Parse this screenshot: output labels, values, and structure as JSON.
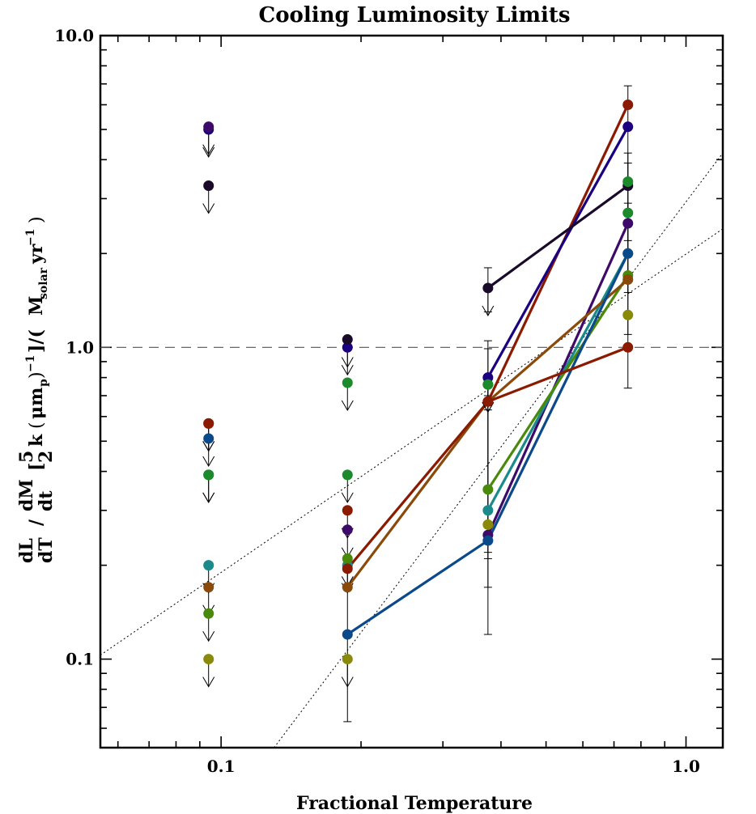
{
  "chart_data": {
    "type": "scatter",
    "title": "Cooling Luminosity Limits",
    "xlabel": "Fractional Temperature",
    "ylabel_parts": {
      "frac1_num": "dL",
      "frac1_den": "dT",
      "frac2_num": "dM",
      "frac2_den": "dt",
      "frac3_num": "5",
      "frac3_den": "2",
      "k": "k",
      "mu": "μm",
      "p": "p",
      "inv": "−1",
      "close": "]/(",
      "msolar": "M",
      "solar": "solar",
      "yr": "yr",
      "yrinv": "−1",
      "end": ")"
    },
    "x_scale": "log",
    "y_scale": "log",
    "xlim": [
      0.055,
      1.2
    ],
    "ylim": [
      0.052,
      10.0
    ],
    "x_ticks": [
      {
        "value": 0.1,
        "label": "0.1"
      },
      {
        "value": 1.0,
        "label": "1.0"
      }
    ],
    "y_ticks": [
      {
        "value": 0.1,
        "label": "0.1"
      },
      {
        "value": 1.0,
        "label": "1.0"
      },
      {
        "value": 10.0,
        "label": "10.0"
      }
    ],
    "reference_line_y": 1.0,
    "dotted_lines": [
      {
        "x": [
          0.055,
          1.2
        ],
        "y": [
          0.103,
          2.4
        ]
      },
      {
        "x": [
          0.13,
          1.2
        ],
        "y": [
          0.052,
          4.2
        ]
      }
    ],
    "x_groups": [
      0.094,
      0.187,
      0.375,
      0.75
    ],
    "series": [
      {
        "color": "#8b1a00",
        "y": [
          0.57,
          0.3,
          0.67,
          6.0
        ],
        "upper_limit": [
          true,
          true,
          false,
          false
        ],
        "connected": [
          false,
          false,
          true,
          true
        ]
      },
      {
        "color": "#1a0080",
        "y": [
          5.0,
          1.0,
          0.8,
          5.1
        ],
        "upper_limit": [
          true,
          true,
          false,
          false
        ],
        "connected": [
          false,
          false,
          true,
          true
        ]
      },
      {
        "color": "#1a0a2a",
        "y": [
          3.3,
          1.06,
          1.55,
          3.3
        ],
        "upper_limit": [
          true,
          true,
          true,
          false
        ],
        "connected": [
          false,
          false,
          true,
          true
        ]
      },
      {
        "color": "#3d0a6a",
        "y": [
          5.1,
          0.26,
          0.25,
          2.5
        ],
        "upper_limit": [
          true,
          true,
          false,
          false
        ],
        "connected": [
          false,
          false,
          true,
          true
        ]
      },
      {
        "color": "#1a8a2a",
        "y": [
          0.39,
          0.39,
          0.76,
          3.4
        ],
        "upper_limit": [
          true,
          true,
          true,
          false
        ],
        "connected": [
          false,
          false,
          false,
          false
        ]
      },
      {
        "color": "#1a8a8a",
        "y": [
          0.2,
          0.2,
          0.3,
          2.0
        ],
        "upper_limit": [
          true,
          true,
          false,
          false
        ],
        "connected": [
          false,
          false,
          true,
          true
        ]
      },
      {
        "color": "#4a8a0a",
        "y": [
          0.14,
          0.21,
          0.35,
          1.7
        ],
        "upper_limit": [
          true,
          true,
          false,
          false
        ],
        "connected": [
          false,
          false,
          true,
          true
        ]
      },
      {
        "color": "#8a4a0a",
        "y": [
          0.17,
          0.17,
          0.67,
          1.65
        ],
        "upper_limit": [
          true,
          false,
          false,
          false
        ],
        "connected": [
          false,
          true,
          true,
          true
        ]
      },
      {
        "color": "#8a8a0a",
        "y": [
          0.1,
          0.1,
          0.27,
          1.27
        ],
        "upper_limit": [
          true,
          true,
          false,
          false
        ],
        "connected": [
          false,
          false,
          false,
          false
        ]
      },
      {
        "color": "#0a4a8a",
        "y": [
          0.51,
          0.12,
          0.24,
          2.0
        ],
        "upper_limit": [
          true,
          false,
          false,
          false
        ],
        "connected": [
          false,
          true,
          true,
          true
        ]
      },
      {
        "color": "#8a1a00",
        "y": [
          0.57,
          0.195,
          0.67,
          1.0
        ],
        "upper_limit": [
          true,
          false,
          false,
          false
        ],
        "connected": [
          false,
          true,
          true,
          true
        ]
      },
      {
        "color": "#1a8a2a",
        "y": [
          0.39,
          0.77,
          0.76,
          2.7
        ],
        "upper_limit": [
          true,
          true,
          true,
          false
        ],
        "connected": [
          false,
          false,
          false,
          false
        ]
      }
    ],
    "error_bars": [
      {
        "x": 0.187,
        "lo": 0.063,
        "hi": 0.17
      },
      {
        "x": 0.375,
        "lo": 0.12,
        "hi": 0.99
      },
      {
        "x": 0.375,
        "lo": 0.17,
        "hi": 1.05
      },
      {
        "x": 0.375,
        "lo": 0.21,
        "hi": 0.8
      },
      {
        "x": 0.375,
        "lo": 0.22,
        "hi": 0.7
      },
      {
        "x": 0.375,
        "lo": 0.63,
        "hi": 0.75
      },
      {
        "x": 0.75,
        "lo": 0.74,
        "hi": 6.9
      },
      {
        "x": 0.75,
        "lo": 1.5,
        "hi": 4.2
      },
      {
        "x": 0.75,
        "lo": 2.2,
        "hi": 3.9
      },
      {
        "x": 0.75,
        "lo": 1.1,
        "hi": 2.9
      },
      {
        "x": 0.375,
        "lo": 1.3,
        "hi": 1.8
      }
    ],
    "grid": false,
    "legend": "none"
  }
}
